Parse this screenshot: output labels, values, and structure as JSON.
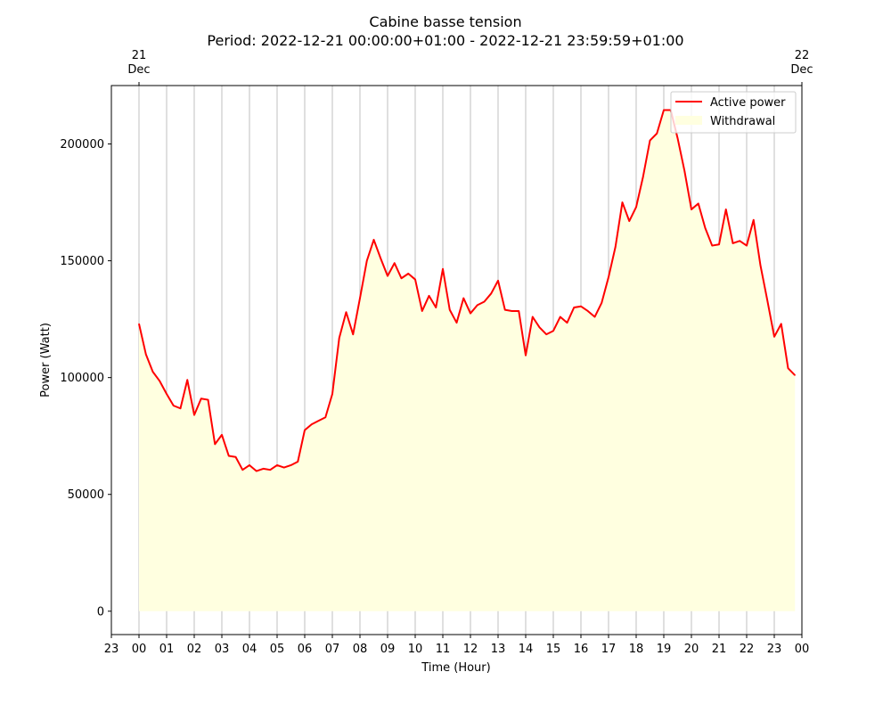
{
  "chart_data": {
    "type": "area",
    "title": "Cabine basse tension",
    "subtitle": "Period: 2022-12-21 00:00:00+01:00 - 2022-12-21 23:59:59+01:00",
    "xlabel": "Time (Hour)",
    "ylabel": "Power (Watt)",
    "x_unit": "hour",
    "xlim": [
      -1,
      24
    ],
    "ylim": [
      -10000,
      225000
    ],
    "x_ticks": [
      {
        "value": -1,
        "label": "23"
      },
      {
        "value": 0,
        "label": "00"
      },
      {
        "value": 1,
        "label": "01"
      },
      {
        "value": 2,
        "label": "02"
      },
      {
        "value": 3,
        "label": "03"
      },
      {
        "value": 4,
        "label": "04"
      },
      {
        "value": 5,
        "label": "05"
      },
      {
        "value": 6,
        "label": "06"
      },
      {
        "value": 7,
        "label": "07"
      },
      {
        "value": 8,
        "label": "08"
      },
      {
        "value": 9,
        "label": "09"
      },
      {
        "value": 10,
        "label": "10"
      },
      {
        "value": 11,
        "label": "11"
      },
      {
        "value": 12,
        "label": "12"
      },
      {
        "value": 13,
        "label": "13"
      },
      {
        "value": 14,
        "label": "14"
      },
      {
        "value": 15,
        "label": "15"
      },
      {
        "value": 16,
        "label": "16"
      },
      {
        "value": 17,
        "label": "17"
      },
      {
        "value": 18,
        "label": "18"
      },
      {
        "value": 19,
        "label": "19"
      },
      {
        "value": 20,
        "label": "20"
      },
      {
        "value": 21,
        "label": "21"
      },
      {
        "value": 22,
        "label": "22"
      },
      {
        "value": 23,
        "label": "23"
      },
      {
        "value": 24,
        "label": "00"
      }
    ],
    "top_ticks": [
      {
        "value": 0,
        "day": "21",
        "month": "Dec"
      },
      {
        "value": 24,
        "day": "22",
        "month": "Dec"
      }
    ],
    "y_ticks": [
      0,
      50000,
      100000,
      150000,
      200000
    ],
    "grid": "vertical",
    "legend": "top-right",
    "series": [
      {
        "name": "Active power",
        "kind": "line",
        "color": "#ff0000",
        "x": [
          0,
          0.25,
          0.5,
          0.75,
          1,
          1.25,
          1.5,
          1.75,
          2,
          2.25,
          2.5,
          2.75,
          3,
          3.25,
          3.5,
          3.75,
          4,
          4.25,
          4.5,
          4.75,
          5,
          5.25,
          5.5,
          5.75,
          6,
          6.25,
          6.5,
          6.75,
          7,
          7.25,
          7.5,
          7.75,
          8,
          8.25,
          8.5,
          8.75,
          9,
          9.25,
          9.5,
          9.75,
          10,
          10.25,
          10.5,
          10.75,
          11,
          11.25,
          11.5,
          11.75,
          12,
          12.25,
          12.5,
          12.75,
          13,
          13.25,
          13.5,
          13.75,
          14,
          14.25,
          14.5,
          14.75,
          15,
          15.25,
          15.5,
          15.75,
          16,
          16.25,
          16.5,
          16.75,
          17,
          17.25,
          17.5,
          17.75,
          18,
          18.25,
          18.5,
          18.75,
          19,
          19.25,
          19.5,
          19.75,
          20,
          20.25,
          20.5,
          20.75,
          21,
          21.25,
          21.5,
          21.75,
          22,
          22.25,
          22.5,
          22.75,
          23,
          23.25,
          23.5,
          23.75
        ],
        "values": [
          123000,
          110000,
          102500,
          98500,
          93000,
          88000,
          86800,
          99000,
          84000,
          91000,
          90500,
          71500,
          75500,
          66500,
          66000,
          60500,
          62500,
          60000,
          61000,
          60500,
          62500,
          61500,
          62500,
          64000,
          77500,
          80000,
          81500,
          83000,
          93000,
          117000,
          128000,
          118500,
          134000,
          150000,
          159000,
          151000,
          143500,
          149000,
          142500,
          144500,
          142000,
          128500,
          135000,
          130000,
          146500,
          129000,
          123500,
          134000,
          127500,
          131000,
          132500,
          136000,
          141500,
          129000,
          128500,
          128500,
          109500,
          126000,
          121500,
          118500,
          120000,
          126000,
          123500,
          130000,
          130500,
          128500,
          126000,
          132000,
          143000,
          156000,
          175000,
          167000,
          173000,
          186000,
          201500,
          204500,
          214500,
          214500,
          202500,
          188500,
          172000,
          174500,
          164000,
          156500,
          157000,
          172000,
          157500,
          158500,
          156500,
          167500,
          148000,
          133000,
          117500,
          123000,
          104000,
          101000
        ]
      },
      {
        "name": "Withdrawal",
        "kind": "fill",
        "color": "#ffffe0"
      }
    ]
  }
}
